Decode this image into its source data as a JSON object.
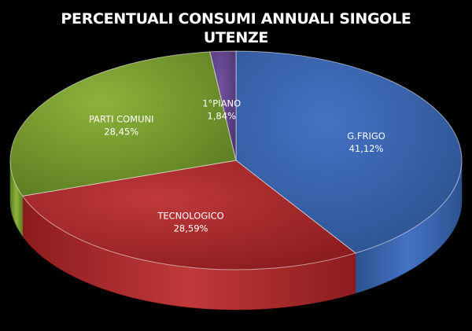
{
  "chart_data": {
    "type": "pie",
    "title_lines": [
      "PERCENTUALI CONSUMI ANNUALI SINGOLE",
      "UTENZE"
    ],
    "style": "3d",
    "slices": [
      {
        "label": "G.FRIGO",
        "value": 41.12,
        "display": "41,12%",
        "color": "#4472c4",
        "side_color": "#2d5290"
      },
      {
        "label": "TECNOLOGICO",
        "value": 28.59,
        "display": "28,59%",
        "color": "#c0393a",
        "side_color": "#8c1c1e"
      },
      {
        "label": "PARTI COMUNI",
        "value": 28.45,
        "display": "28,45%",
        "color": "#8db33a",
        "side_color": "#5d7c22"
      },
      {
        "label": "1°PIANO",
        "value": 1.84,
        "display": "1,84%",
        "color": "#7252a0",
        "side_color": "#4d3570"
      }
    ]
  }
}
